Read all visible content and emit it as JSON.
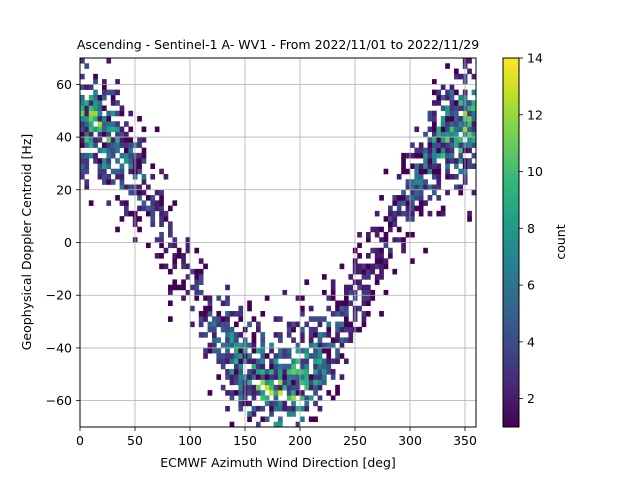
{
  "chart_data": {
    "type": "heatmap",
    "title": "Ascending - Sentinel-1 A- WV1 - From 2022/11/01 to 2022/11/29",
    "xlabel": "ECMWF Azimuth Wind Direction [deg]",
    "ylabel": "Geophysical Doppler Centroid [Hz]",
    "xlim": [
      0,
      360
    ],
    "ylim": [
      -70,
      70
    ],
    "xticks": [
      0,
      50,
      100,
      150,
      200,
      250,
      300,
      350
    ],
    "xtick_labels": [
      "0",
      "50",
      "100",
      "150",
      "200",
      "250",
      "300",
      "350"
    ],
    "yticks": [
      -60,
      -40,
      -20,
      0,
      20,
      40,
      60
    ],
    "ytick_labels": [
      "−60",
      "−40",
      "−20",
      "0",
      "20",
      "40",
      "60"
    ],
    "grid": true,
    "colorbar": {
      "label": "count",
      "range": [
        1,
        14
      ],
      "ticks": [
        2,
        4,
        6,
        8,
        10,
        12,
        14
      ],
      "tick_labels": [
        "2",
        "4",
        "6",
        "8",
        "10",
        "12",
        "14"
      ],
      "colormap": "viridis"
    },
    "bin_width_x": 4,
    "bin_height_y": 2,
    "density_model": {
      "description": "counts concentrated along a U-shaped band: doppler ≈ -5 + 50*cos(direction)",
      "amplitude_hz": 50,
      "offset_hz": -5,
      "max_count": 14
    }
  },
  "colors": {
    "viridis": [
      "#440154",
      "#482878",
      "#3e4989",
      "#31688e",
      "#26828e",
      "#1f9e89",
      "#35b779",
      "#6ece58",
      "#b5de2b",
      "#fde725"
    ],
    "grid": "#b0b0b0",
    "axis": "#000000"
  }
}
